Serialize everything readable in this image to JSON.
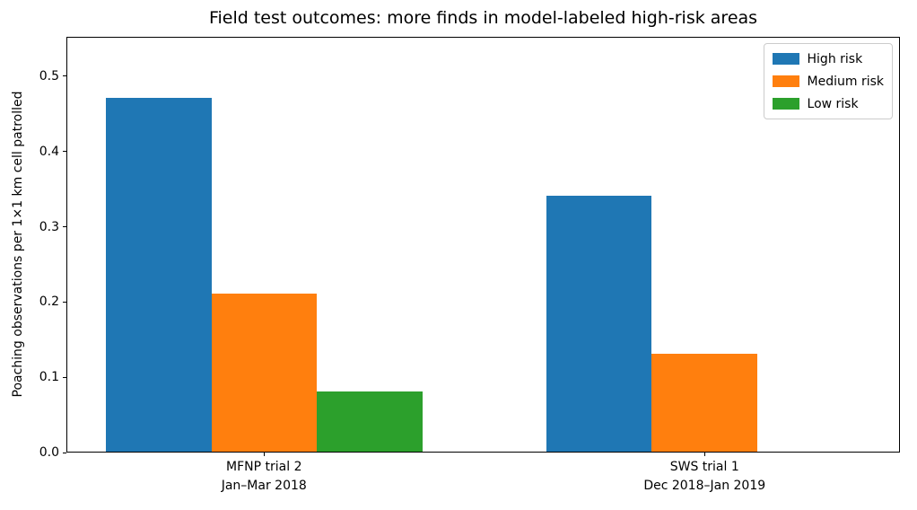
{
  "chart_data": {
    "type": "bar",
    "title": "Field test outcomes: more finds in model-labeled high-risk areas",
    "xlabel": "",
    "ylabel": "Poaching observations per 1×1 km cell patrolled",
    "categories": [
      [
        "MFNP trial 2",
        "Jan–Mar 2018"
      ],
      [
        "SWS trial 1",
        "Dec 2018–Jan 2019"
      ]
    ],
    "series": [
      {
        "name": "High risk",
        "color": "#1f77b4",
        "values": [
          0.47,
          0.34
        ]
      },
      {
        "name": "Medium risk",
        "color": "#ff7f0e",
        "values": [
          0.21,
          0.13
        ]
      },
      {
        "name": "Low risk",
        "color": "#2ca02c",
        "values": [
          0.08,
          0.0
        ]
      }
    ],
    "yticks": [
      0.0,
      0.1,
      0.2,
      0.3,
      0.4,
      0.5
    ],
    "ylim": [
      0,
      0.5525
    ],
    "legend_position": "upper right",
    "grid": false,
    "background_color": "#ffffff",
    "spine_color": "#000000"
  }
}
